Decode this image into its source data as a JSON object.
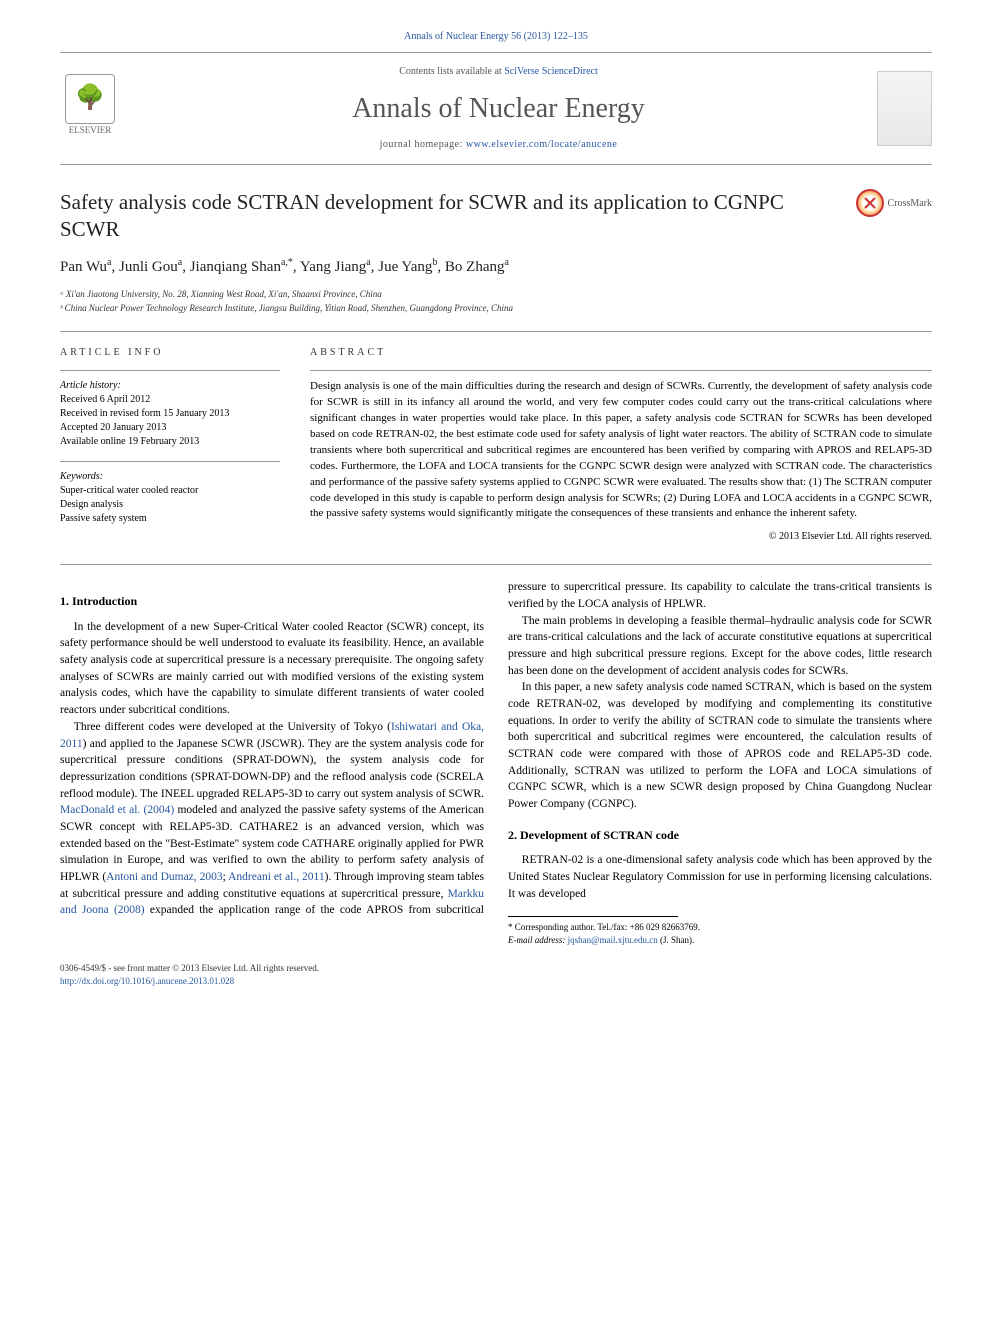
{
  "citation": "Annals of Nuclear Energy 56 (2013) 122–135",
  "banner": {
    "contents_prefix": "Contents lists available at ",
    "contents_link": "SciVerse ScienceDirect",
    "journal_name": "Annals of Nuclear Energy",
    "homepage_prefix": "journal homepage: ",
    "homepage_url": "www.elsevier.com/locate/anucene",
    "publisher_label": "ELSEVIER"
  },
  "crossmark_label": "CrossMark",
  "title": "Safety analysis code SCTRAN development for SCWR and its application to CGNPC SCWR",
  "authors_html": "Pan Wu<sup>a</sup>, Junli Gou<sup>a</sup>, Jianqiang Shan<sup>a,*</sup>, Yang Jiang<sup>a</sup>, Jue Yang<sup>b</sup>, Bo Zhang<sup>a</sup>",
  "affiliations": [
    "ᵃ Xi'an Jiaotong University, No. 28, Xianning West Road, Xi'an, Shaanxi Province, China",
    "ᵇ China Nuclear Power Technology Research Institute, Jiangsu Building, Yitian Road, Shenzhen, Guangdong Province, China"
  ],
  "article_info_label": "article info",
  "abstract_label": "abstract",
  "history_label": "Article history:",
  "history": [
    "Received 6 April 2012",
    "Received in revised form 15 January 2013",
    "Accepted 20 January 2013",
    "Available online 19 February 2013"
  ],
  "keywords_label": "Keywords:",
  "keywords": [
    "Super-critical water cooled reactor",
    "Design analysis",
    "Passive safety system"
  ],
  "abstract": "Design analysis is one of the main difficulties during the research and design of SCWRs. Currently, the development of safety analysis code for SCWR is still in its infancy all around the world, and very few computer codes could carry out the trans-critical calculations where significant changes in water properties would take place. In this paper, a safety analysis code SCTRAN for SCWRs has been developed based on code RETRAN-02, the best estimate code used for safety analysis of light water reactors. The ability of SCTRAN code to simulate transients where both supercritical and subcritical regimes are encountered has been verified by comparing with APROS and RELAP5-3D codes. Furthermore, the LOFA and LOCA transients for the CGNPC SCWR design were analyzed with SCTRAN code. The characteristics and performance of the passive safety systems applied to CGNPC SCWR were evaluated. The results show that: (1) The SCTRAN computer code developed in this study is capable to perform design analysis for SCWRs; (2) During LOFA and LOCA accidents in a CGNPC SCWR, the passive safety systems would significantly mitigate the consequences of these transients and enhance the inherent safety.",
  "copyright": "© 2013 Elsevier Ltd. All rights reserved.",
  "sections": {
    "intro_heading": "1. Introduction",
    "intro_p1": "In the development of a new Super-Critical Water cooled Reactor (SCWR) concept, its safety performance should be well understood to evaluate its feasibility. Hence, an available safety analysis code at supercritical pressure is a necessary prerequisite. The ongoing safety analyses of SCWRs are mainly carried out with modified versions of the existing system analysis codes, which have the capability to simulate different transients of water cooled reactors under subcritical conditions.",
    "intro_p2a": "Three different codes were developed at the University of Tokyo (",
    "intro_p2_link1": "Ishiwatari and Oka, 2011",
    "intro_p2b": ") and applied to the Japanese SCWR (JSCWR). They are the system analysis code for supercritical pressure conditions (SPRAT-DOWN), the system analysis code for depressurization conditions (SPRAT-DOWN-DP) and the reflood analysis code (SCRELA reflood module). The INEEL upgraded RELAP5-3D to carry out system analysis of SCWR. ",
    "intro_p2_link2": "MacDonald et al. (2004)",
    "intro_p2c": " modeled and analyzed the passive safety systems of the American SCWR concept with RELAP5-3D. CATHARE2 is an advanced version, which was extended based on the \"Best-Estimate\" system code CATHARE originally applied for PWR simulation in Europe, and was verified to own the ability to perform safety analysis of HPLWR (",
    "intro_p2_link3": "Antoni and Dumaz, 2003",
    "intro_p2d": "; ",
    "intro_p2_link4": "Andreani et al., 2011",
    "intro_p2e": "). Through improving steam tables at subcritical pressure and adding constitutive equations at supercritical pressure, ",
    "intro_p2_link5": "Markku and Joona (2008)",
    "intro_p2f": " expanded the application range of the code APROS from subcritical pressure to supercritical pressure. Its capability to calculate the trans-critical transients is verified by the LOCA analysis of HPLWR.",
    "intro_p3": "The main problems in developing a feasible thermal–hydraulic analysis code for SCWR are trans-critical calculations and the lack of accurate constitutive equations at supercritical pressure and high subcritical pressure regions. Except for the above codes, little research has been done on the development of accident analysis codes for SCWRs.",
    "intro_p4": "In this paper, a new safety analysis code named SCTRAN, which is based on the system code RETRAN-02, was developed by modifying and complementing its constitutive equations. In order to verify the ability of SCTRAN code to simulate the transients where both supercritical and subcritical regimes were encountered, the calculation results of SCTRAN code were compared with those of APROS code and RELAP5-3D code. Additionally, SCTRAN was utilized to perform the LOFA and LOCA simulations of CGNPC SCWR, which is a new SCWR design proposed by China Guangdong Nuclear Power Company (CGNPC).",
    "dev_heading": "2. Development of SCTRAN code",
    "dev_p1": "RETRAN-02 is a one-dimensional safety analysis code which has been approved by the United States Nuclear Regulatory Commission for use in performing licensing calculations. It was developed"
  },
  "footnote": {
    "corr": "* Corresponding author. Tel./fax: +86 029 82663769.",
    "email_label": "E-mail address:",
    "email": "jqshan@mail.xjtu.edu.cn",
    "email_who": "(J. Shan)."
  },
  "bottom": {
    "issn": "0306-4549/$ - see front matter © 2013 Elsevier Ltd. All rights reserved.",
    "doi_url": "http://dx.doi.org/10.1016/j.anucene.2013.01.028"
  }
}
